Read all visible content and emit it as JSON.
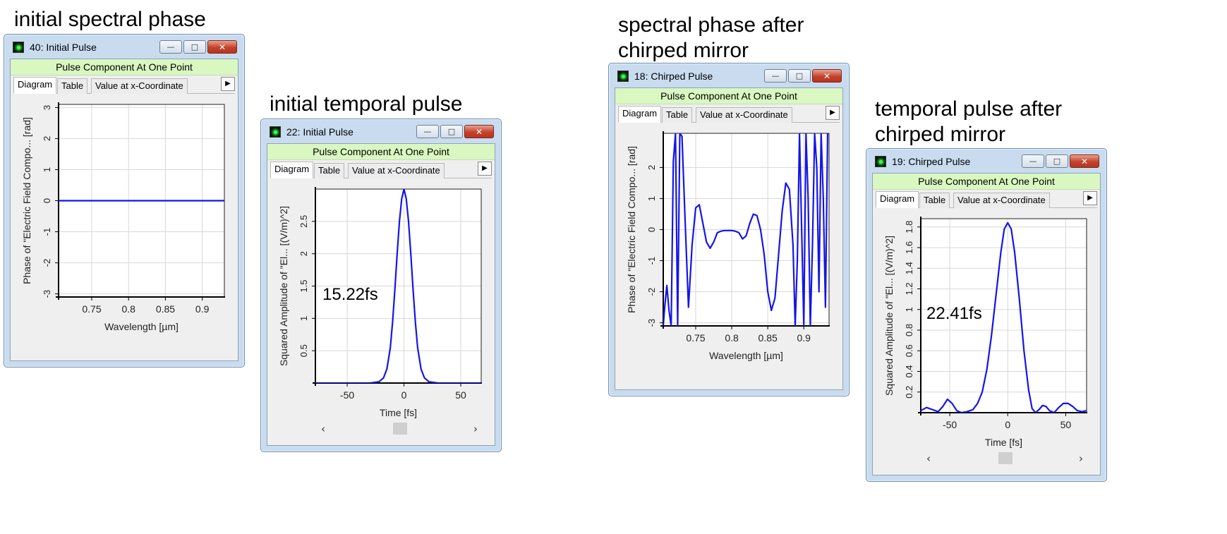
{
  "captions": {
    "c1": "initial spectral phase",
    "c2": "initial temporal pulse",
    "c3_line1": "spectral phase after",
    "c3_line2": "chirped mirror",
    "c4_line1": "temporal pulse after",
    "c4_line2": "chirped mirror"
  },
  "common": {
    "banner": "Pulse Component At One Point",
    "tab_diagram": "Diagram",
    "tab_table": "Table",
    "tab_value": "Value at x-Coordinate",
    "btn_minimize": "—",
    "btn_maximize": "□",
    "btn_close": "✕",
    "tab_more": "▶",
    "scroll_left": "‹",
    "scroll_right": "›"
  },
  "windows": {
    "w1": {
      "title": "40: Initial Pulse"
    },
    "w2": {
      "title": "22: Initial Pulse",
      "annotation": "15.22fs"
    },
    "w3": {
      "title": "18: Chirped Pulse"
    },
    "w4": {
      "title": "19: Chirped Pulse",
      "annotation": "22.41fs"
    }
  },
  "chart_data": [
    {
      "id": "w1",
      "type": "line",
      "xlabel": "Wavelength [µm]",
      "ylabel": "Phase of \"Electric Field Compo... [rad]",
      "xlim": [
        0.705,
        0.93
      ],
      "ylim": [
        -3.1,
        3.1
      ],
      "xticks": [
        0.75,
        0.8,
        0.85,
        0.9
      ],
      "xtick_labels": [
        "0.75",
        "0.8",
        "0.85",
        "0.9"
      ],
      "yticks": [
        -3,
        -2,
        -1,
        0,
        1,
        2,
        3
      ],
      "ytick_labels": [
        "-3",
        "-2",
        "-1",
        "0",
        "1",
        "2",
        "3"
      ],
      "grid": true,
      "color": "#1515e8",
      "series": [
        {
          "x": [
            0.705,
            0.93
          ],
          "y": [
            0,
            0
          ]
        }
      ]
    },
    {
      "id": "w2",
      "type": "line",
      "xlabel": "Time [fs]",
      "ylabel": "Squared Amplitude of \"El... [(V/m)^2]",
      "xlim": [
        -78,
        68
      ],
      "ylim": [
        0,
        3.0
      ],
      "xticks": [
        -50,
        0,
        50
      ],
      "xtick_labels": [
        "-50",
        "0",
        "50"
      ],
      "yticks": [
        0.5,
        1,
        1.5,
        2,
        2.5
      ],
      "ytick_labels": [
        "0.5",
        "1",
        "1.5",
        "2",
        "2.5"
      ],
      "grid": true,
      "color": "#1515e8",
      "series": [
        {
          "x": [
            -78,
            -30,
            -22,
            -18,
            -15,
            -12,
            -10,
            -8,
            -6,
            -4,
            -2,
            0,
            2,
            4,
            6,
            8,
            10,
            12,
            15,
            18,
            22,
            30,
            68
          ],
          "y": [
            0,
            0,
            0.02,
            0.08,
            0.22,
            0.55,
            0.95,
            1.45,
            2.0,
            2.5,
            2.85,
            3.0,
            2.85,
            2.5,
            2.0,
            1.45,
            0.95,
            0.55,
            0.22,
            0.08,
            0.02,
            0,
            0
          ]
        }
      ]
    },
    {
      "id": "w3",
      "type": "line",
      "xlabel": "Wavelength [µm]",
      "ylabel": "Phase of \"Electric Field Compo... [rad]",
      "xlim": [
        0.705,
        0.935
      ],
      "ylim": [
        -3.1,
        3.1
      ],
      "xticks": [
        0.75,
        0.8,
        0.85,
        0.9
      ],
      "xtick_labels": [
        "0.75",
        "0.8",
        "0.85",
        "0.9"
      ],
      "yticks": [
        -3,
        -2,
        -1,
        0,
        1,
        2
      ],
      "ytick_labels": [
        "-3",
        "-2",
        "-1",
        "0",
        "1",
        "2"
      ],
      "grid": true,
      "color": "#1515e8",
      "series": [
        {
          "x": [
            0.705,
            0.707,
            0.71,
            0.713,
            0.716,
            0.719,
            0.722,
            0.725,
            0.728,
            0.731,
            0.735,
            0.74,
            0.745,
            0.75,
            0.755,
            0.76,
            0.765,
            0.77,
            0.775,
            0.78,
            0.785,
            0.79,
            0.795,
            0.8,
            0.805,
            0.81,
            0.815,
            0.82,
            0.825,
            0.83,
            0.835,
            0.84,
            0.845,
            0.85,
            0.855,
            0.86,
            0.865,
            0.87,
            0.875,
            0.88,
            0.885,
            0.888,
            0.891,
            0.894,
            0.897,
            0.9,
            0.903,
            0.906,
            0.909,
            0.912,
            0.915,
            0.918,
            0.921,
            0.924,
            0.927,
            0.93,
            0.933
          ],
          "y": [
            -3.1,
            -2.5,
            -1.8,
            -2.6,
            -3.1,
            2.2,
            3.1,
            -3.1,
            3.1,
            3.0,
            0.5,
            -2.5,
            -0.5,
            0.7,
            0.8,
            0.2,
            -0.4,
            -0.6,
            -0.4,
            -0.1,
            -0.05,
            -0.03,
            -0.03,
            -0.03,
            -0.05,
            -0.1,
            -0.3,
            -0.2,
            0.2,
            0.5,
            0.45,
            0.0,
            -0.8,
            -2.0,
            -2.6,
            -2.2,
            -0.8,
            0.6,
            1.5,
            1.3,
            -0.5,
            -3.1,
            -1.0,
            3.1,
            0.0,
            -3.1,
            3.1,
            1.0,
            -3.1,
            -0.5,
            3.1,
            2.0,
            -2.0,
            3.1,
            1.0,
            -2.5,
            3.1
          ]
        }
      ]
    },
    {
      "id": "w4",
      "type": "line",
      "xlabel": "Time [fs]",
      "ylabel": "Squared Amplitude of \"El... [(V/m)^2]",
      "xlim": [
        -75,
        68
      ],
      "ylim": [
        0,
        1.88
      ],
      "xticks": [
        -50,
        0,
        50
      ],
      "xtick_labels": [
        "-50",
        "0",
        "50"
      ],
      "yticks": [
        0.2,
        0.4,
        0.6,
        0.8,
        1,
        1.2,
        1.4,
        1.6,
        1.8
      ],
      "ytick_labels": [
        "0.2",
        "0.4",
        "0.6",
        "0.8",
        "1",
        "1.2",
        "1.4",
        "1.6",
        "1.8"
      ],
      "grid": true,
      "color": "#1515e8",
      "series": [
        {
          "x": [
            -75,
            -70,
            -65,
            -60,
            -56,
            -52,
            -48,
            -44,
            -40,
            -35,
            -30,
            -26,
            -22,
            -18,
            -14,
            -10,
            -6,
            -3,
            0,
            3,
            6,
            10,
            14,
            18,
            21,
            24,
            27,
            30,
            33,
            36,
            40,
            44,
            48,
            52,
            56,
            60,
            64,
            68
          ],
          "y": [
            0.02,
            0.05,
            0.03,
            0.01,
            0.06,
            0.13,
            0.09,
            0.02,
            0.0,
            0.01,
            0.03,
            0.09,
            0.2,
            0.42,
            0.75,
            1.15,
            1.55,
            1.78,
            1.84,
            1.78,
            1.55,
            1.1,
            0.6,
            0.22,
            0.04,
            0.0,
            0.03,
            0.07,
            0.06,
            0.02,
            0.0,
            0.05,
            0.09,
            0.09,
            0.06,
            0.02,
            0.01,
            0.02
          ]
        }
      ]
    }
  ]
}
